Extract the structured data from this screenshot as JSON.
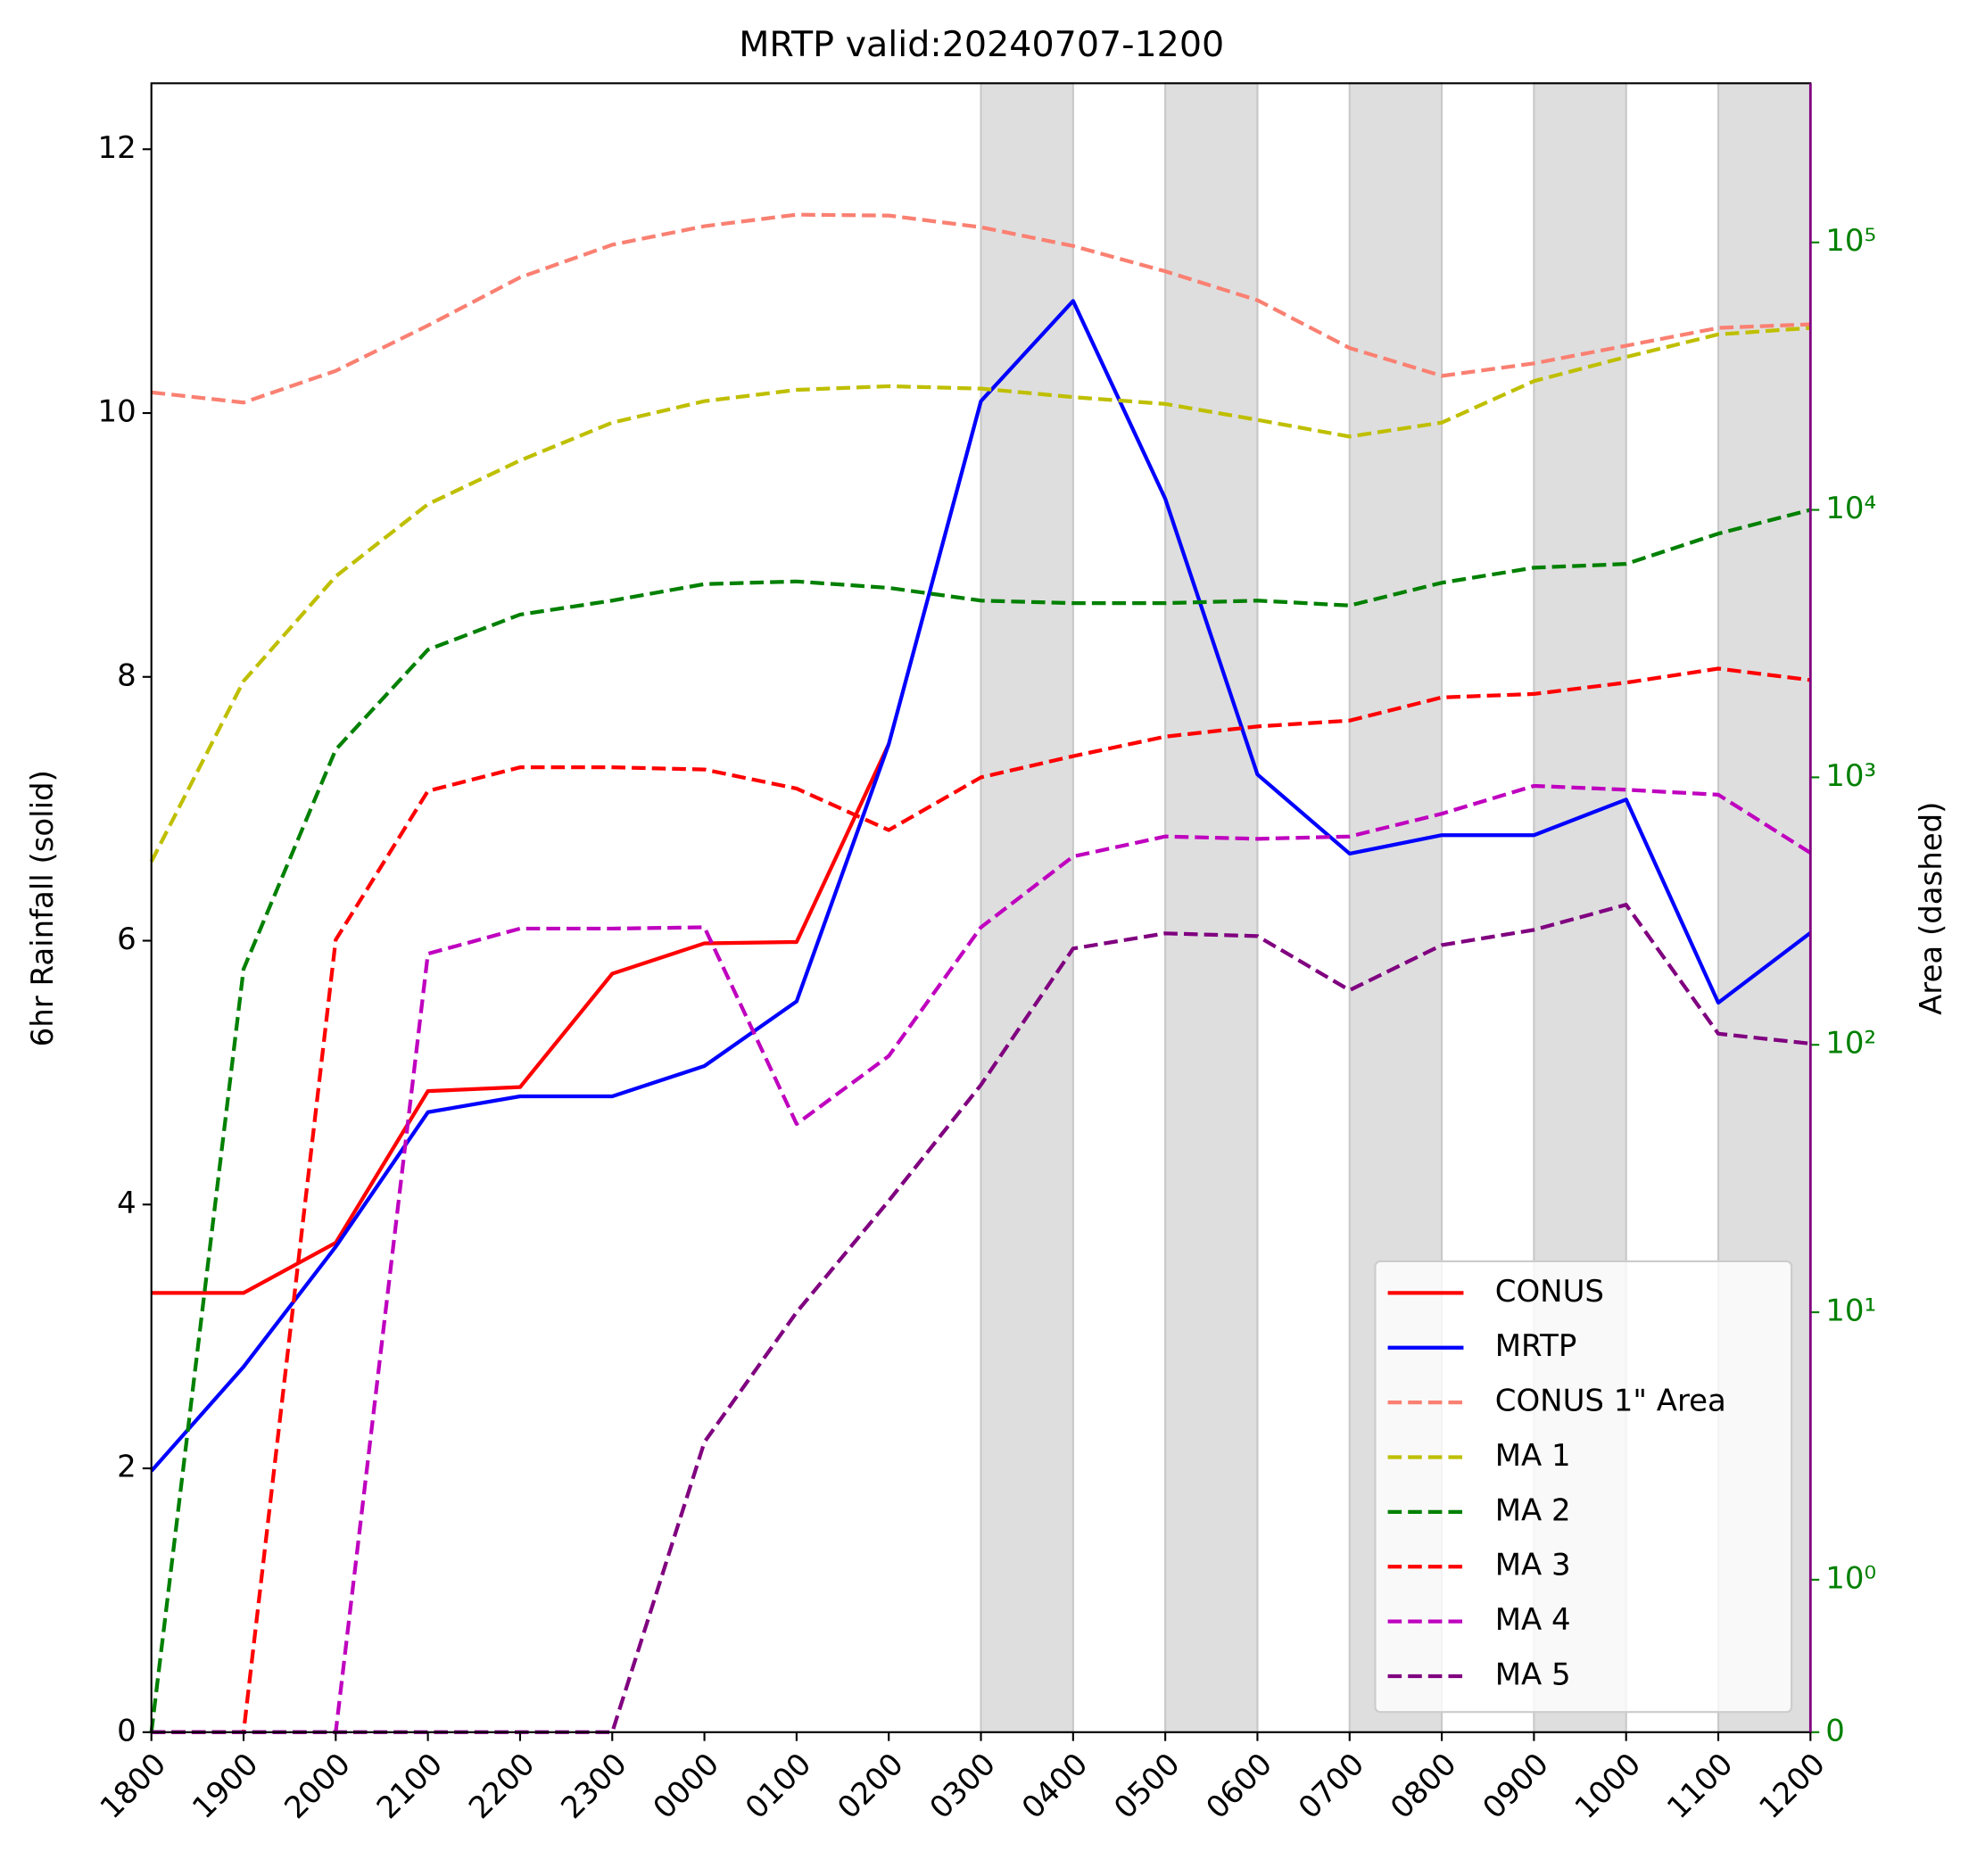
{
  "chart_data": {
    "type": "line",
    "title": "MRTP valid:20240707-1200",
    "y_label": "6hr Rainfall (solid)",
    "y2_label": "Area (dashed)",
    "categories": [
      "1800",
      "1900",
      "2000",
      "2100",
      "2200",
      "2300",
      "0000",
      "0100",
      "0200",
      "0300",
      "0400",
      "0500",
      "0600",
      "0700",
      "0800",
      "0900",
      "1000",
      "1100",
      "1200"
    ],
    "ylim": [
      0,
      12.5
    ],
    "yticks": [
      0,
      2,
      4,
      6,
      8,
      10,
      12
    ],
    "y2lim": [
      0,
      393600
    ],
    "y2scale": "symlog",
    "y2_color": "#008000",
    "y2_spine_color": "#800080",
    "y2ticks": [
      0,
      {
        "value": 1,
        "label": "10⁰"
      },
      {
        "value": 10,
        "label": "10¹"
      },
      {
        "value": 100,
        "label": "10²"
      },
      {
        "value": 1000,
        "label": "10³"
      },
      {
        "value": 10000,
        "label": "10⁴"
      },
      {
        "value": 100000,
        "label": "10⁵"
      }
    ],
    "shaded_spans": [
      [
        9,
        10
      ],
      [
        11,
        12
      ],
      [
        13,
        14
      ],
      [
        15,
        16
      ],
      [
        17,
        18
      ]
    ],
    "legend": "lower right",
    "series": [
      {
        "name": "CONUS",
        "color": "#ff0000",
        "linestyle": "solid",
        "values": [
          3.33,
          3.33,
          3.71,
          4.86,
          4.89,
          5.75,
          5.98,
          5.99,
          7.49,
          null,
          null,
          null,
          null,
          null,
          null,
          null,
          null,
          null,
          null
        ]
      },
      {
        "name": "MRTP",
        "color": "#0000ff",
        "linestyle": "solid",
        "values": [
          1.98,
          2.77,
          3.68,
          4.7,
          4.82,
          4.82,
          5.05,
          5.54,
          7.49,
          10.09,
          10.85,
          9.35,
          7.26,
          6.66,
          6.8,
          6.8,
          7.07,
          5.53,
          6.06
        ]
      },
      {
        "name": "CONUS 1\" Area",
        "color": "#fa8072",
        "linestyle": "dashed",
        "axis": "y2",
        "values": [
          27500,
          25200,
          33100,
          48900,
          74000,
          98000,
          115000,
          127000,
          126000,
          114000,
          97000,
          78000,
          60800,
          40300,
          31700,
          35300,
          41100,
          47900,
          49400
        ]
      },
      {
        "name": "MA 1",
        "color": "#bfbf00",
        "linestyle": "dashed",
        "axis": "y2",
        "values": [
          484,
          2290,
          5640,
          10500,
          15300,
          21200,
          25500,
          28100,
          29000,
          28400,
          26400,
          24900,
          21700,
          18800,
          21200,
          30300,
          37300,
          45300,
          47900
        ]
      },
      {
        "name": "MA 2",
        "color": "#008000",
        "linestyle": "dashed",
        "axis": "y2",
        "values": [
          0,
          192,
          1270,
          3000,
          4060,
          4580,
          5280,
          5400,
          5110,
          4580,
          4480,
          4480,
          4580,
          4390,
          5340,
          6080,
          6280,
          8150,
          10000
        ]
      },
      {
        "name": "MA 3",
        "color": "#ff0000",
        "linestyle": "dashed",
        "axis": "y2",
        "values": [
          0,
          0,
          247,
          889,
          1090,
          1090,
          1070,
          908,
          635,
          1000,
          1200,
          1420,
          1550,
          1630,
          1990,
          2050,
          2260,
          2550,
          2310
        ]
      },
      {
        "name": "MA 4",
        "color": "#bf00bf",
        "linestyle": "dashed",
        "axis": "y2",
        "values": [
          0,
          0,
          0,
          219,
          272,
          272,
          275,
          50.6,
          90.8,
          275,
          506,
          601,
          589,
          601,
          731,
          929,
          899,
          861,
          522
        ]
      },
      {
        "name": "MA 5",
        "color": "#800080",
        "linestyle": "dashed",
        "axis": "y2",
        "values": [
          0,
          0,
          0,
          0,
          0,
          0,
          3.27,
          10.0,
          26.1,
          70.8,
          229,
          261,
          255,
          160,
          236,
          269,
          334,
          110,
          101
        ]
      }
    ]
  }
}
